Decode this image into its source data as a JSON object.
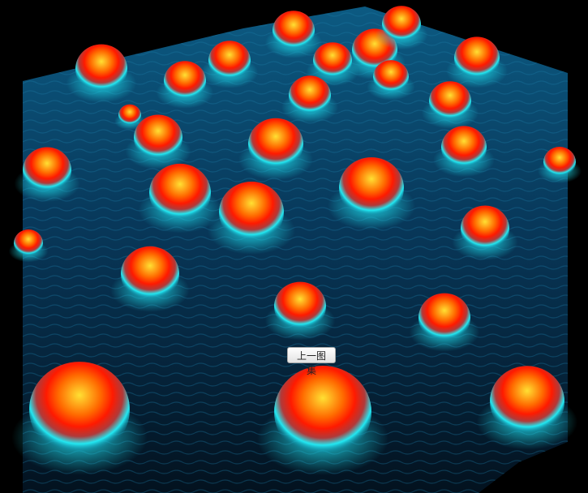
{
  "viewer": {
    "image_icon": "afm-nanodot-surface-image",
    "colors": {
      "background": "#000000",
      "surface_dark": "#03121f",
      "surface_mid": "#0b4a70",
      "peak_base": "#19e6f0",
      "peak_mid": "#ff3a00",
      "peak_top": "#ffd21a"
    }
  },
  "nav": {
    "prev_gallery_label": "上一图集"
  }
}
